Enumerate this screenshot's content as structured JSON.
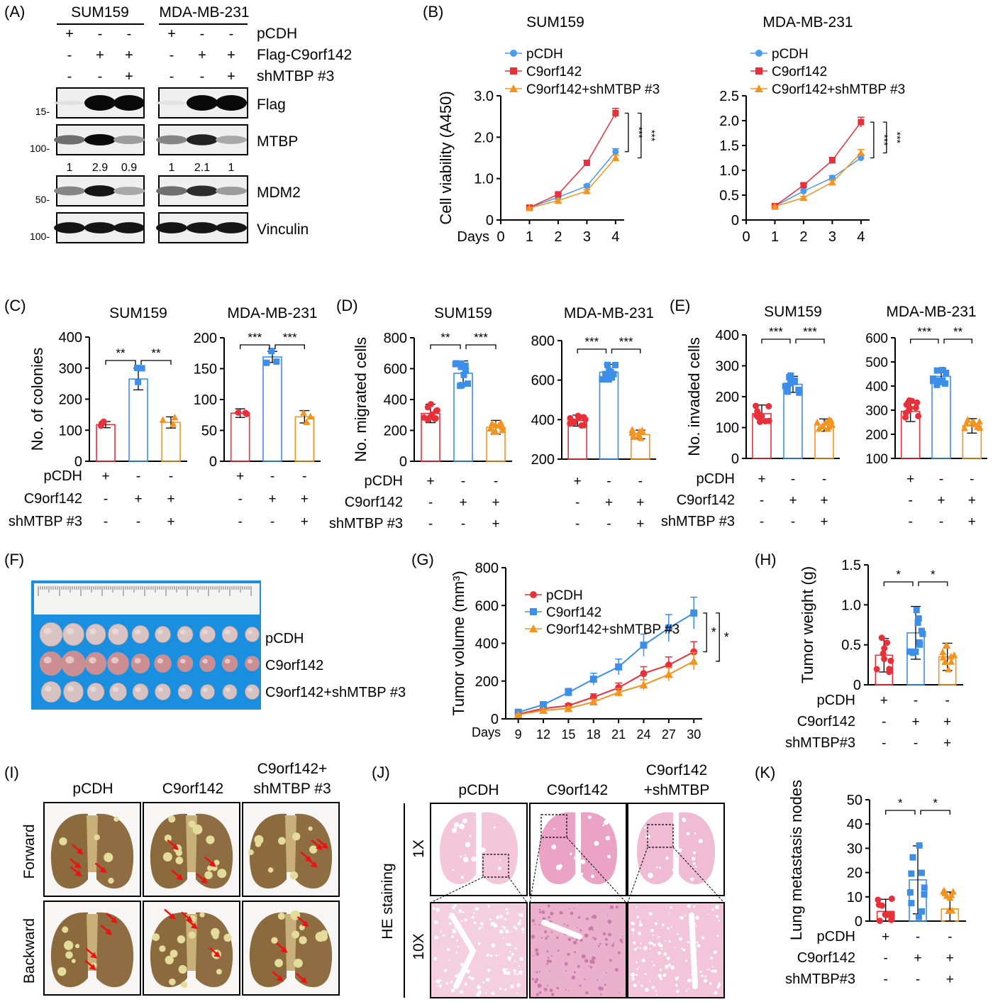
{
  "panel_letters": [
    "(A)",
    "(B)",
    "(C)",
    "(D)",
    "(E)",
    "(F)",
    "(G)",
    "(H)",
    "(I)",
    "(J)",
    "(K)"
  ],
  "blot": {
    "cell_lines": [
      "SUM159",
      "MDA-MB-231"
    ],
    "row_labels": [
      "pCDH",
      "Flag-C9orf142",
      "shMTBP #3"
    ],
    "signs": [
      [
        "+",
        "-",
        "-"
      ],
      [
        "-",
        "+",
        "+"
      ],
      [
        "-",
        "-",
        "+"
      ]
    ],
    "bands": [
      {
        "label": "Flag",
        "marker": "15-"
      },
      {
        "label": "MTBP",
        "marker": "100-"
      },
      {
        "label": "MDM2",
        "marker": "50-"
      },
      {
        "label": "Vinculin",
        "marker": "100-"
      }
    ],
    "mtbp_quant": [
      [
        "1",
        "2.9",
        "0.9"
      ],
      [
        "1",
        "2.1",
        "1"
      ]
    ]
  },
  "conditions_3": {
    "labels": [
      "pCDH",
      "C9orf142",
      "shMTBP #3"
    ],
    "labels_h": [
      "pCDH",
      "C9orf142",
      "shMTBP#3"
    ],
    "signs": [
      [
        "+",
        "-",
        "-"
      ],
      [
        "-",
        "+",
        "+"
      ],
      [
        "-",
        "-",
        "+"
      ]
    ]
  },
  "photos": {
    "F_rows": [
      "pCDH",
      "C9orf142",
      "C9orf142+shMTBP #3"
    ],
    "I_cols": [
      "pCDH",
      "C9orf142",
      "C9orf142+",
      "shMTBP #3"
    ],
    "I_rows": [
      "Forward",
      "Backward"
    ],
    "J_cols": [
      "pCDH",
      "C9orf142",
      "C9orf142",
      "+shMTBP"
    ],
    "J_rows": [
      "1X",
      "10X"
    ],
    "J_side": "HE staining"
  },
  "colors": {
    "pcdh": "#e8303a",
    "c9": "#3d8ee8",
    "sh": "#f39320",
    "pcdh_line_B": "#4a9af0",
    "c9_line_B": "#e8303a"
  },
  "chart_data": [
    {
      "id": "B1",
      "type": "line",
      "title": "SUM159",
      "ylabel": "Cell viability (A450)",
      "xlabel": "Days",
      "x": [
        1,
        2,
        3,
        4
      ],
      "ylim": [
        0,
        3
      ],
      "yticks": [
        "0",
        "1.0",
        "2.0",
        "3.0"
      ],
      "xticks": [
        "0",
        "1",
        "2",
        "3",
        "4"
      ],
      "series": [
        {
          "name": "pCDH",
          "values": [
            0.3,
            0.55,
            0.82,
            1.65
          ]
        },
        {
          "name": "C9orf142",
          "values": [
            0.3,
            0.62,
            1.38,
            2.58
          ]
        },
        {
          "name": "C9orf142+shMTBP #3",
          "values": [
            0.29,
            0.47,
            0.7,
            1.5
          ]
        }
      ],
      "sig": [
        "***",
        "***"
      ]
    },
    {
      "id": "B2",
      "type": "line",
      "title": "MDA-MB-231",
      "x": [
        1,
        2,
        3,
        4
      ],
      "ylim": [
        0,
        2.5
      ],
      "yticks": [
        "0",
        "0.5",
        "1.0",
        "1.5",
        "2.0",
        "2.5"
      ],
      "xticks": [
        "0",
        "1",
        "2",
        "3",
        "4"
      ],
      "series": [
        {
          "name": "pCDH",
          "values": [
            0.28,
            0.58,
            0.85,
            1.25
          ]
        },
        {
          "name": "C9orf142",
          "values": [
            0.28,
            0.7,
            1.2,
            1.97
          ]
        },
        {
          "name": "C9orf142+shMTBP #3",
          "values": [
            0.27,
            0.45,
            0.76,
            1.35
          ]
        }
      ],
      "sig": [
        "***",
        "***"
      ]
    },
    {
      "id": "C1",
      "type": "bar",
      "title": "SUM159",
      "ylabel": "No. of colonies",
      "ylim": [
        0,
        400
      ],
      "yticks": [
        "0",
        "100",
        "200",
        "300",
        "400"
      ],
      "categories": [
        "pCDH",
        "C9orf142",
        "C9orf142+shMTBP #3"
      ],
      "values": [
        118,
        265,
        125
      ],
      "sig": [
        "**",
        "**"
      ]
    },
    {
      "id": "C2",
      "type": "bar",
      "title": "MDA-MB-231",
      "ylim": [
        0,
        200
      ],
      "yticks": [
        "0",
        "50",
        "100",
        "150",
        "200"
      ],
      "categories": [
        "pCDH",
        "C9orf142",
        "C9orf142+shMTBP #3"
      ],
      "values": [
        78,
        169,
        72
      ],
      "sig": [
        "***",
        "***"
      ]
    },
    {
      "id": "D1",
      "type": "bar",
      "title": "SUM159",
      "ylabel": "No. migrated cells",
      "ylim": [
        0,
        800
      ],
      "yticks": [
        "0",
        "200",
        "400",
        "600",
        "800"
      ],
      "categories": [
        "pCDH",
        "C9orf142",
        "C9orf142+shMTBP #3"
      ],
      "values": [
        310,
        570,
        220
      ],
      "sig": [
        "**",
        "***"
      ]
    },
    {
      "id": "D2",
      "type": "bar",
      "title": "MDA-MB-231",
      "ylim": [
        200,
        800
      ],
      "yticks": [
        "200",
        "400",
        "600",
        "800"
      ],
      "categories": [
        "pCDH",
        "C9orf142",
        "C9orf142+shMTBP #3"
      ],
      "values": [
        395,
        640,
        325
      ],
      "sig": [
        "***",
        "***"
      ]
    },
    {
      "id": "E1",
      "type": "bar",
      "title": "SUM159",
      "ylabel": "No. invaded cells",
      "ylim": [
        0,
        400
      ],
      "yticks": [
        "0",
        "100",
        "200",
        "300",
        "400"
      ],
      "categories": [
        "pCDH",
        "C9orf142",
        "C9orf142+shMTBP #3"
      ],
      "values": [
        145,
        240,
        108
      ],
      "sig": [
        "***",
        "***"
      ]
    },
    {
      "id": "E2",
      "type": "bar",
      "title": "MDA-MB-231",
      "ylim": [
        100,
        600
      ],
      "yticks": [
        "100",
        "200",
        "300",
        "400",
        "500",
        "600"
      ],
      "categories": [
        "pCDH",
        "C9orf142",
        "C9orf142+shMTBP #3"
      ],
      "values": [
        295,
        440,
        235
      ],
      "sig": [
        "***",
        "**"
      ]
    },
    {
      "id": "G",
      "type": "line",
      "ylabel": "Tumor volume (mm³)",
      "xlabel": "Days",
      "x": [
        9,
        12,
        15,
        18,
        21,
        24,
        27,
        30
      ],
      "ylim": [
        0,
        800
      ],
      "yticks": [
        "0",
        "200",
        "400",
        "600",
        "800"
      ],
      "series": [
        {
          "name": "pCDH",
          "values": [
            25,
            55,
            70,
            115,
            165,
            240,
            285,
            355
          ]
        },
        {
          "name": "C9orf142",
          "values": [
            35,
            75,
            140,
            210,
            275,
            390,
            480,
            560
          ]
        },
        {
          "name": "C9orf142+shMTBP #3",
          "values": [
            22,
            45,
            55,
            90,
            140,
            180,
            235,
            305
          ]
        }
      ],
      "sig": [
        "*",
        "*"
      ]
    },
    {
      "id": "H",
      "type": "bar",
      "ylabel": "Tumor weight (g)",
      "ylim": [
        0,
        1.5
      ],
      "yticks": [
        "0",
        "0.5",
        "1.0",
        "1.5"
      ],
      "categories": [
        "pCDH",
        "C9orf142",
        "C9orf142+shMTBP #3"
      ],
      "values": [
        0.37,
        0.65,
        0.35
      ],
      "sig": [
        "*",
        "*"
      ]
    },
    {
      "id": "K",
      "type": "bar",
      "ylabel": "Lung metastasis nodes",
      "ylim": [
        0,
        50
      ],
      "yticks": [
        "0",
        "10",
        "20",
        "30",
        "40",
        "50"
      ],
      "categories": [
        "pCDH",
        "C9orf142",
        "C9orf142+shMTBP #3"
      ],
      "values": [
        4,
        17,
        5
      ],
      "sig": [
        "*",
        "*"
      ]
    }
  ]
}
